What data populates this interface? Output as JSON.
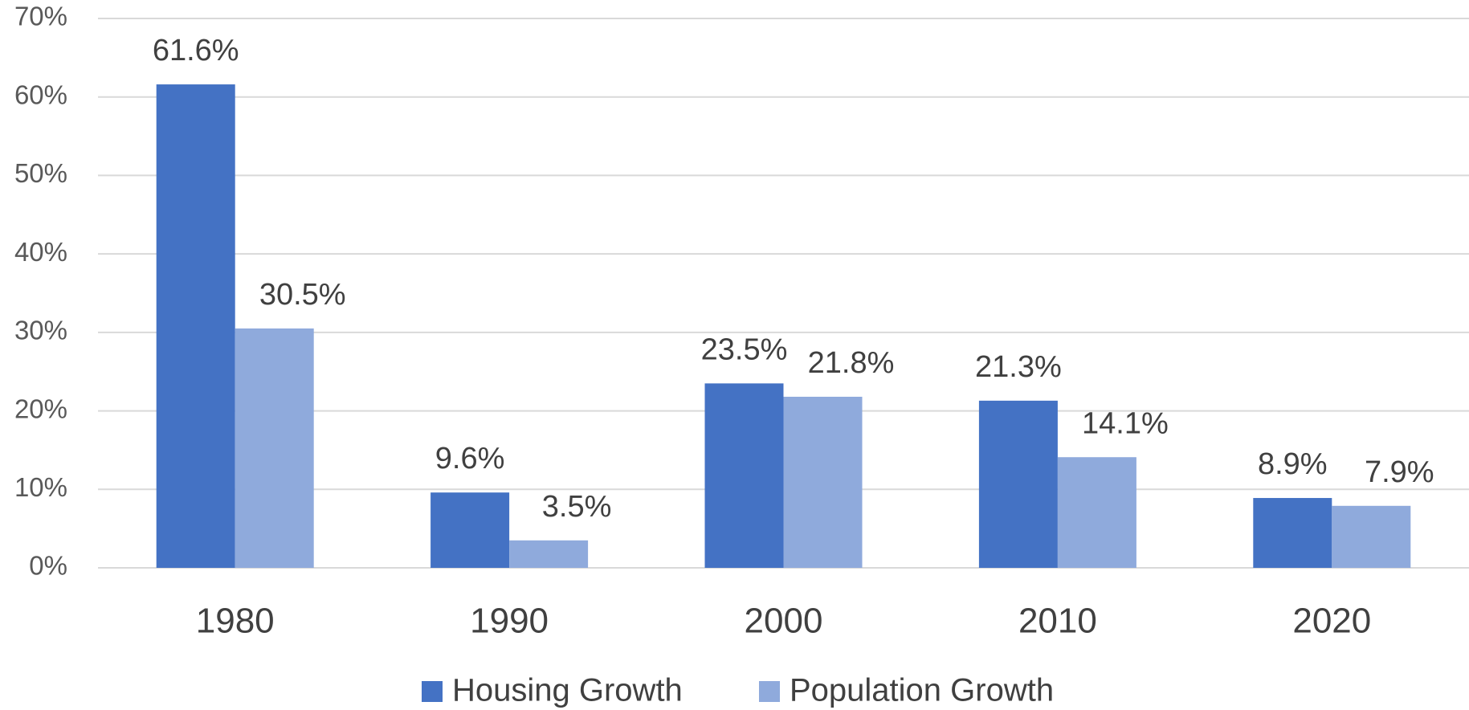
{
  "chart_data": {
    "type": "bar",
    "categories": [
      "1980",
      "1990",
      "2000",
      "2010",
      "2020"
    ],
    "series": [
      {
        "name": "Housing Growth",
        "color": "#4472c4",
        "values": [
          61.6,
          9.6,
          23.5,
          21.3,
          8.9
        ],
        "value_labels": [
          "61.6%",
          "9.6%",
          "23.5%",
          "21.3%",
          "8.9%"
        ]
      },
      {
        "name": "Population Growth",
        "color": "#8faadc",
        "values": [
          30.5,
          3.5,
          21.8,
          14.1,
          7.9
        ],
        "value_labels": [
          "30.5%",
          "3.5%",
          "21.8%",
          "14.1%",
          "7.9%"
        ]
      }
    ],
    "ylim": [
      0,
      70
    ],
    "yticks": [
      {
        "value": 0,
        "label": "0%"
      },
      {
        "value": 10,
        "label": "10%"
      },
      {
        "value": 20,
        "label": "20%"
      },
      {
        "value": 30,
        "label": "30%"
      },
      {
        "value": 40,
        "label": "40%"
      },
      {
        "value": 50,
        "label": "50%"
      },
      {
        "value": 60,
        "label": "60%"
      },
      {
        "value": 70,
        "label": "70%"
      }
    ],
    "grid": true,
    "legend": "bottom"
  }
}
